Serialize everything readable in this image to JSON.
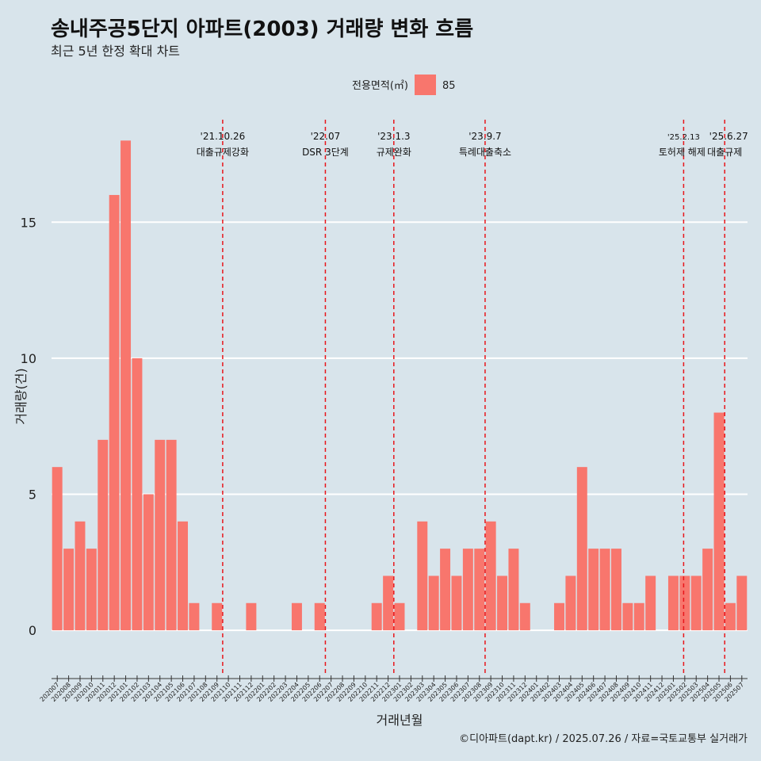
{
  "title": "송내주공5단지 아파트(2003) 거래량 변화 흐름",
  "subtitle": "최근 5년 한정 확대 차트",
  "caption": "©디아파트(dapt.kr) / 2025.07.26 / 자료=국토교통부 실거래가",
  "colors": {
    "background": "#d8e4eb",
    "bar": "#f8766d",
    "event_line": "#e8161b",
    "grid": "#ffffff"
  },
  "chart_data": {
    "type": "bar",
    "xlabel": "거래년월",
    "ylabel": "거래량(건)",
    "ylim": [
      -1.6,
      19
    ],
    "yticks": [
      0,
      5,
      10,
      15
    ],
    "grid": true,
    "legend": {
      "title": "전용면적(㎡)",
      "placement": "top"
    },
    "categories": [
      "202007",
      "202008",
      "202009",
      "202010",
      "202011",
      "202012",
      "202101",
      "202102",
      "202103",
      "202104",
      "202105",
      "202106",
      "202107",
      "202108",
      "202109",
      "202110",
      "202111",
      "202112",
      "202201",
      "202202",
      "202203",
      "202204",
      "202205",
      "202206",
      "202207",
      "202208",
      "202209",
      "202210",
      "202211",
      "202212",
      "202301",
      "202302",
      "202303",
      "202304",
      "202305",
      "202306",
      "202307",
      "202308",
      "202309",
      "202310",
      "202311",
      "202312",
      "202401",
      "202402",
      "202403",
      "202404",
      "202405",
      "202406",
      "202407",
      "202408",
      "202409",
      "202410",
      "202411",
      "202412",
      "202501",
      "202502",
      "202503",
      "202504",
      "202505",
      "202506",
      "202507"
    ],
    "series": [
      {
        "name": "85",
        "values": [
          6,
          3,
          4,
          3,
          7,
          16,
          18,
          10,
          5,
          7,
          7,
          4,
          1,
          0,
          1,
          0,
          0,
          1,
          0,
          0,
          0,
          1,
          0,
          1,
          0,
          0,
          0,
          0,
          1,
          2,
          1,
          0,
          4,
          2,
          3,
          2,
          3,
          3,
          4,
          2,
          3,
          1,
          0,
          0,
          1,
          2,
          6,
          3,
          3,
          3,
          1,
          1,
          2,
          0,
          2,
          2,
          2,
          3,
          8,
          1,
          2
        ]
      }
    ],
    "events": [
      {
        "date": "'21.10.26",
        "label": "대출규제강화",
        "category": "202110"
      },
      {
        "date": "'22.07",
        "label": "DSR 3단계",
        "category": "202207"
      },
      {
        "date": "'23.1.3",
        "label": "규제완화",
        "category": "202301"
      },
      {
        "date": "'23.9.7",
        "label": "특례대출축소",
        "category": "202309"
      },
      {
        "date": "'25.2.13",
        "label": "토허제 해제",
        "category": "202502"
      },
      {
        "date": "'25.6.27",
        "label": "대출규제",
        "category": "202506"
      }
    ]
  }
}
